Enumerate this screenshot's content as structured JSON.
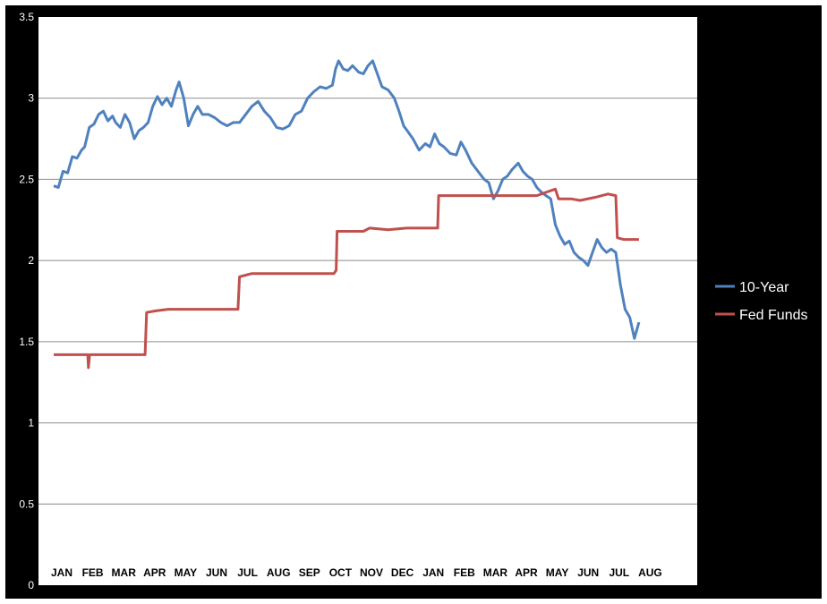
{
  "chart_data": {
    "type": "line",
    "title": "",
    "xlabel": "",
    "ylabel": "",
    "ylim": [
      0,
      3.5
    ],
    "yticks": [
      "0",
      "0.5",
      "1",
      "1.5",
      "2",
      "2.5",
      "3",
      "3.5"
    ],
    "month_labels": [
      "JAN",
      "FEB",
      "MAR",
      "APR",
      "MAY",
      "JUN",
      "JUL",
      "AUG",
      "SEP",
      "OCT",
      "NOV",
      "DEC",
      "JAN",
      "FEB",
      "MAR",
      "APR",
      "MAY",
      "JUN",
      "JUL",
      "AUG"
    ],
    "grid": true,
    "legend_position": "right",
    "series": [
      {
        "name": "10-Year",
        "color": "#4f81bd",
        "points": [
          [
            0.0,
            2.46
          ],
          [
            0.15,
            2.45
          ],
          [
            0.3,
            2.55
          ],
          [
            0.45,
            2.54
          ],
          [
            0.6,
            2.64
          ],
          [
            0.75,
            2.63
          ],
          [
            0.9,
            2.68
          ],
          [
            1.0,
            2.7
          ],
          [
            1.15,
            2.82
          ],
          [
            1.3,
            2.84
          ],
          [
            1.45,
            2.9
          ],
          [
            1.6,
            2.92
          ],
          [
            1.75,
            2.86
          ],
          [
            1.9,
            2.89
          ],
          [
            2.0,
            2.85
          ],
          [
            2.15,
            2.82
          ],
          [
            2.3,
            2.9
          ],
          [
            2.45,
            2.85
          ],
          [
            2.6,
            2.75
          ],
          [
            2.75,
            2.8
          ],
          [
            2.9,
            2.82
          ],
          [
            3.05,
            2.85
          ],
          [
            3.2,
            2.95
          ],
          [
            3.35,
            3.01
          ],
          [
            3.5,
            2.96
          ],
          [
            3.65,
            3.0
          ],
          [
            3.8,
            2.95
          ],
          [
            3.95,
            3.05
          ],
          [
            4.05,
            3.1
          ],
          [
            4.2,
            3.0
          ],
          [
            4.35,
            2.83
          ],
          [
            4.5,
            2.9
          ],
          [
            4.65,
            2.95
          ],
          [
            4.8,
            2.9
          ],
          [
            5.0,
            2.9
          ],
          [
            5.2,
            2.88
          ],
          [
            5.4,
            2.85
          ],
          [
            5.6,
            2.83
          ],
          [
            5.8,
            2.85
          ],
          [
            6.0,
            2.85
          ],
          [
            6.2,
            2.9
          ],
          [
            6.4,
            2.95
          ],
          [
            6.6,
            2.98
          ],
          [
            6.8,
            2.92
          ],
          [
            7.0,
            2.88
          ],
          [
            7.2,
            2.82
          ],
          [
            7.4,
            2.81
          ],
          [
            7.6,
            2.83
          ],
          [
            7.8,
            2.9
          ],
          [
            8.0,
            2.92
          ],
          [
            8.2,
            3.0
          ],
          [
            8.4,
            3.04
          ],
          [
            8.6,
            3.07
          ],
          [
            8.8,
            3.06
          ],
          [
            9.0,
            3.08
          ],
          [
            9.1,
            3.18
          ],
          [
            9.2,
            3.23
          ],
          [
            9.35,
            3.18
          ],
          [
            9.5,
            3.17
          ],
          [
            9.65,
            3.2
          ],
          [
            9.85,
            3.16
          ],
          [
            10.0,
            3.15
          ],
          [
            10.15,
            3.2
          ],
          [
            10.3,
            3.23
          ],
          [
            10.45,
            3.15
          ],
          [
            10.6,
            3.07
          ],
          [
            10.8,
            3.05
          ],
          [
            11.0,
            3.0
          ],
          [
            11.15,
            2.92
          ],
          [
            11.3,
            2.83
          ],
          [
            11.45,
            2.79
          ],
          [
            11.6,
            2.75
          ],
          [
            11.8,
            2.68
          ],
          [
            12.0,
            2.72
          ],
          [
            12.15,
            2.7
          ],
          [
            12.3,
            2.78
          ],
          [
            12.45,
            2.72
          ],
          [
            12.6,
            2.7
          ],
          [
            12.8,
            2.66
          ],
          [
            13.0,
            2.65
          ],
          [
            13.15,
            2.73
          ],
          [
            13.3,
            2.68
          ],
          [
            13.5,
            2.6
          ],
          [
            13.7,
            2.55
          ],
          [
            13.9,
            2.5
          ],
          [
            14.05,
            2.48
          ],
          [
            14.2,
            2.38
          ],
          [
            14.35,
            2.43
          ],
          [
            14.5,
            2.5
          ],
          [
            14.65,
            2.52
          ],
          [
            14.8,
            2.56
          ],
          [
            15.0,
            2.6
          ],
          [
            15.15,
            2.55
          ],
          [
            15.3,
            2.52
          ],
          [
            15.45,
            2.5
          ],
          [
            15.6,
            2.45
          ],
          [
            15.75,
            2.42
          ],
          [
            15.9,
            2.4
          ],
          [
            16.05,
            2.38
          ],
          [
            16.2,
            2.22
          ],
          [
            16.35,
            2.15
          ],
          [
            16.5,
            2.1
          ],
          [
            16.65,
            2.12
          ],
          [
            16.8,
            2.05
          ],
          [
            16.95,
            2.02
          ],
          [
            17.1,
            2.0
          ],
          [
            17.25,
            1.97
          ],
          [
            17.4,
            2.05
          ],
          [
            17.55,
            2.13
          ],
          [
            17.7,
            2.08
          ],
          [
            17.85,
            2.05
          ],
          [
            18.0,
            2.07
          ],
          [
            18.15,
            2.05
          ],
          [
            18.3,
            1.85
          ],
          [
            18.45,
            1.7
          ],
          [
            18.6,
            1.65
          ],
          [
            18.75,
            1.52
          ],
          [
            18.9,
            1.62
          ]
        ]
      },
      {
        "name": "Fed Funds",
        "color": "#c0504d",
        "points": [
          [
            0.0,
            1.42
          ],
          [
            1.1,
            1.42
          ],
          [
            1.12,
            1.34
          ],
          [
            1.16,
            1.42
          ],
          [
            2.95,
            1.42
          ],
          [
            3.0,
            1.68
          ],
          [
            3.3,
            1.69
          ],
          [
            3.7,
            1.7
          ],
          [
            5.95,
            1.7
          ],
          [
            6.0,
            1.9
          ],
          [
            6.2,
            1.91
          ],
          [
            6.4,
            1.92
          ],
          [
            8.0,
            1.92
          ],
          [
            9.05,
            1.92
          ],
          [
            9.12,
            1.94
          ],
          [
            9.15,
            2.18
          ],
          [
            10.0,
            2.18
          ],
          [
            10.2,
            2.2
          ],
          [
            10.8,
            2.19
          ],
          [
            11.4,
            2.2
          ],
          [
            12.4,
            2.2
          ],
          [
            12.43,
            2.4
          ],
          [
            15.6,
            2.4
          ],
          [
            15.9,
            2.42
          ],
          [
            16.2,
            2.44
          ],
          [
            16.3,
            2.38
          ],
          [
            16.7,
            2.38
          ],
          [
            17.0,
            2.37
          ],
          [
            17.5,
            2.39
          ],
          [
            17.9,
            2.41
          ],
          [
            18.15,
            2.4
          ],
          [
            18.2,
            2.14
          ],
          [
            18.4,
            2.13
          ],
          [
            18.9,
            2.13
          ]
        ]
      }
    ]
  }
}
